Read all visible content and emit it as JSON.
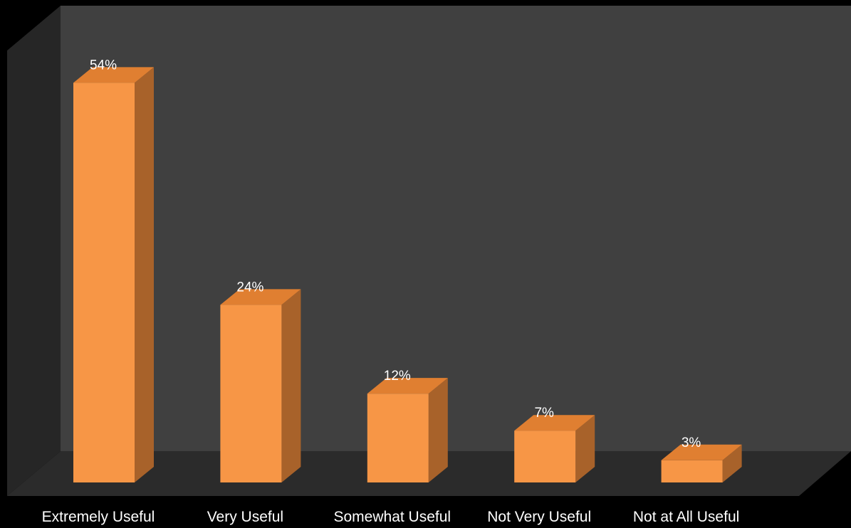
{
  "chart_data": {
    "type": "bar",
    "style": "3d-column",
    "categories": [
      "Extremely Useful",
      "Very Useful",
      "Somewhat Useful",
      "Not Very Useful",
      "Not at All Useful"
    ],
    "values": [
      54,
      24,
      12,
      7,
      3
    ],
    "value_labels": [
      "54%",
      "24%",
      "12%",
      "7%",
      "3%"
    ],
    "unit": "%",
    "ylim": [
      0,
      56
    ],
    "grid": false,
    "legend": "none",
    "colors": {
      "background": "#000000",
      "back_wall": "#404040",
      "side_wall": "#262626",
      "floor": "#2b2b2b",
      "bar_front": "#f79646",
      "bar_top": "#e07f31",
      "bar_side": "#a8622a",
      "text": "#ffffff"
    }
  }
}
